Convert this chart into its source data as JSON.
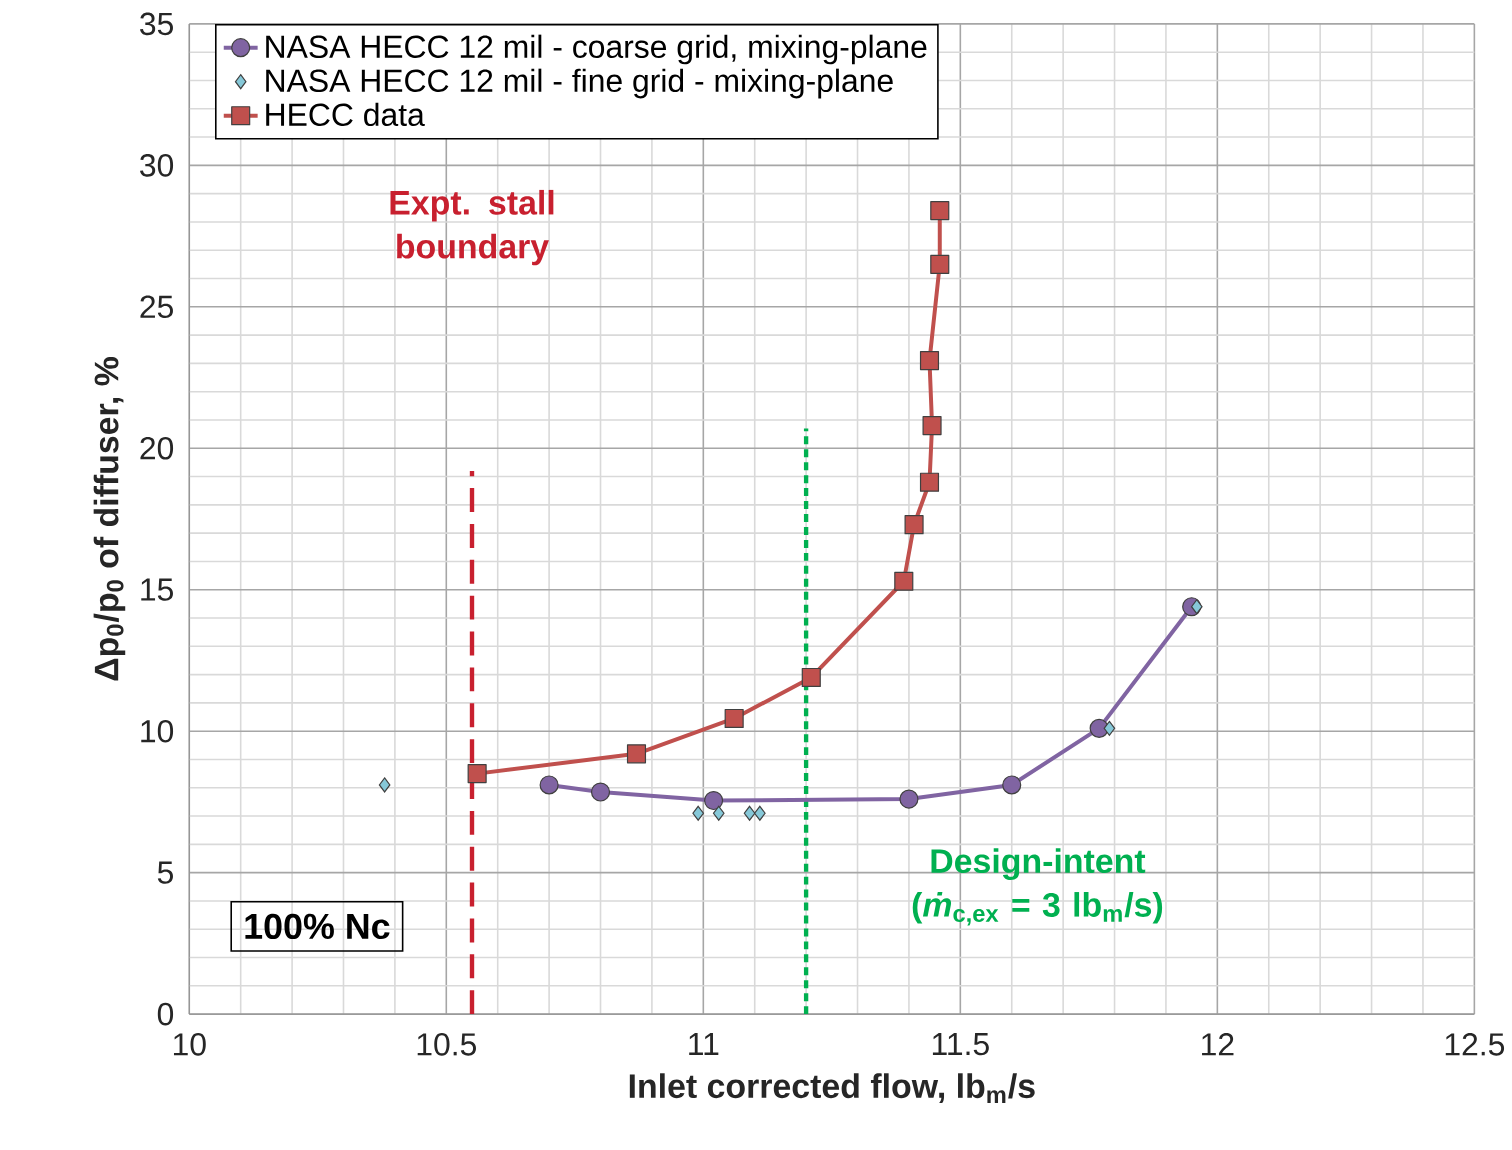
{
  "chart_data": {
    "type": "line",
    "xlabel": "Inlet corrected flow, lb$_{m}$/s",
    "ylabel": "Δp$_{0}$/p$_{0}$ of diffuser, %",
    "xlim": [
      10,
      12.5
    ],
    "ylim": [
      0,
      35
    ],
    "xticks": [
      10,
      10.5,
      11,
      11.5,
      12,
      12.5
    ],
    "yticks": [
      0,
      5,
      10,
      15,
      20,
      25,
      30,
      35
    ],
    "grid": true,
    "legend": "top left",
    "series": [
      {
        "name": "NASA HECC 12 mil - coarse grid, mixing-plane",
        "marker": "circle",
        "color": "#8064a2",
        "x": [
          10.7,
          10.8,
          11.02,
          11.4,
          11.6,
          11.77,
          11.95
        ],
        "values": [
          8.1,
          7.85,
          7.55,
          7.6,
          8.1,
          10.1,
          14.4
        ]
      },
      {
        "name": "NASA HECC 12 mil - fine grid - mixing-plane",
        "type": "scatter",
        "marker": "diamond",
        "color": "#86c8d8",
        "x": [
          10.38,
          10.99,
          11.03,
          11.09,
          11.11,
          11.79,
          11.96
        ],
        "values": [
          8.1,
          7.1,
          7.1,
          7.1,
          7.1,
          10.1,
          14.4
        ]
      },
      {
        "name": "HECC data",
        "marker": "square",
        "color": "#c0504d",
        "x": [
          10.56,
          10.87,
          11.06,
          11.21,
          11.39,
          11.41,
          11.44,
          11.445,
          11.44,
          11.46,
          11.46
        ],
        "values": [
          8.5,
          9.2,
          10.45,
          11.9,
          15.3,
          17.3,
          18.8,
          20.8,
          23.1,
          26.5,
          28.4
        ]
      }
    ],
    "ref_lines": [
      {
        "axis": "x",
        "value": 10.55,
        "label": "Expt. stall boundary",
        "color": "#c8202f",
        "line_style": "dashed"
      },
      {
        "axis": "x",
        "value": 11.2,
        "color": "#00b050",
        "line_style": "dotted"
      }
    ],
    "annotations": [
      "100% Nc",
      "Design-intent (*ṁ*$_{c,ex}$ = 3 lb$_{m}$/s)"
    ]
  }
}
